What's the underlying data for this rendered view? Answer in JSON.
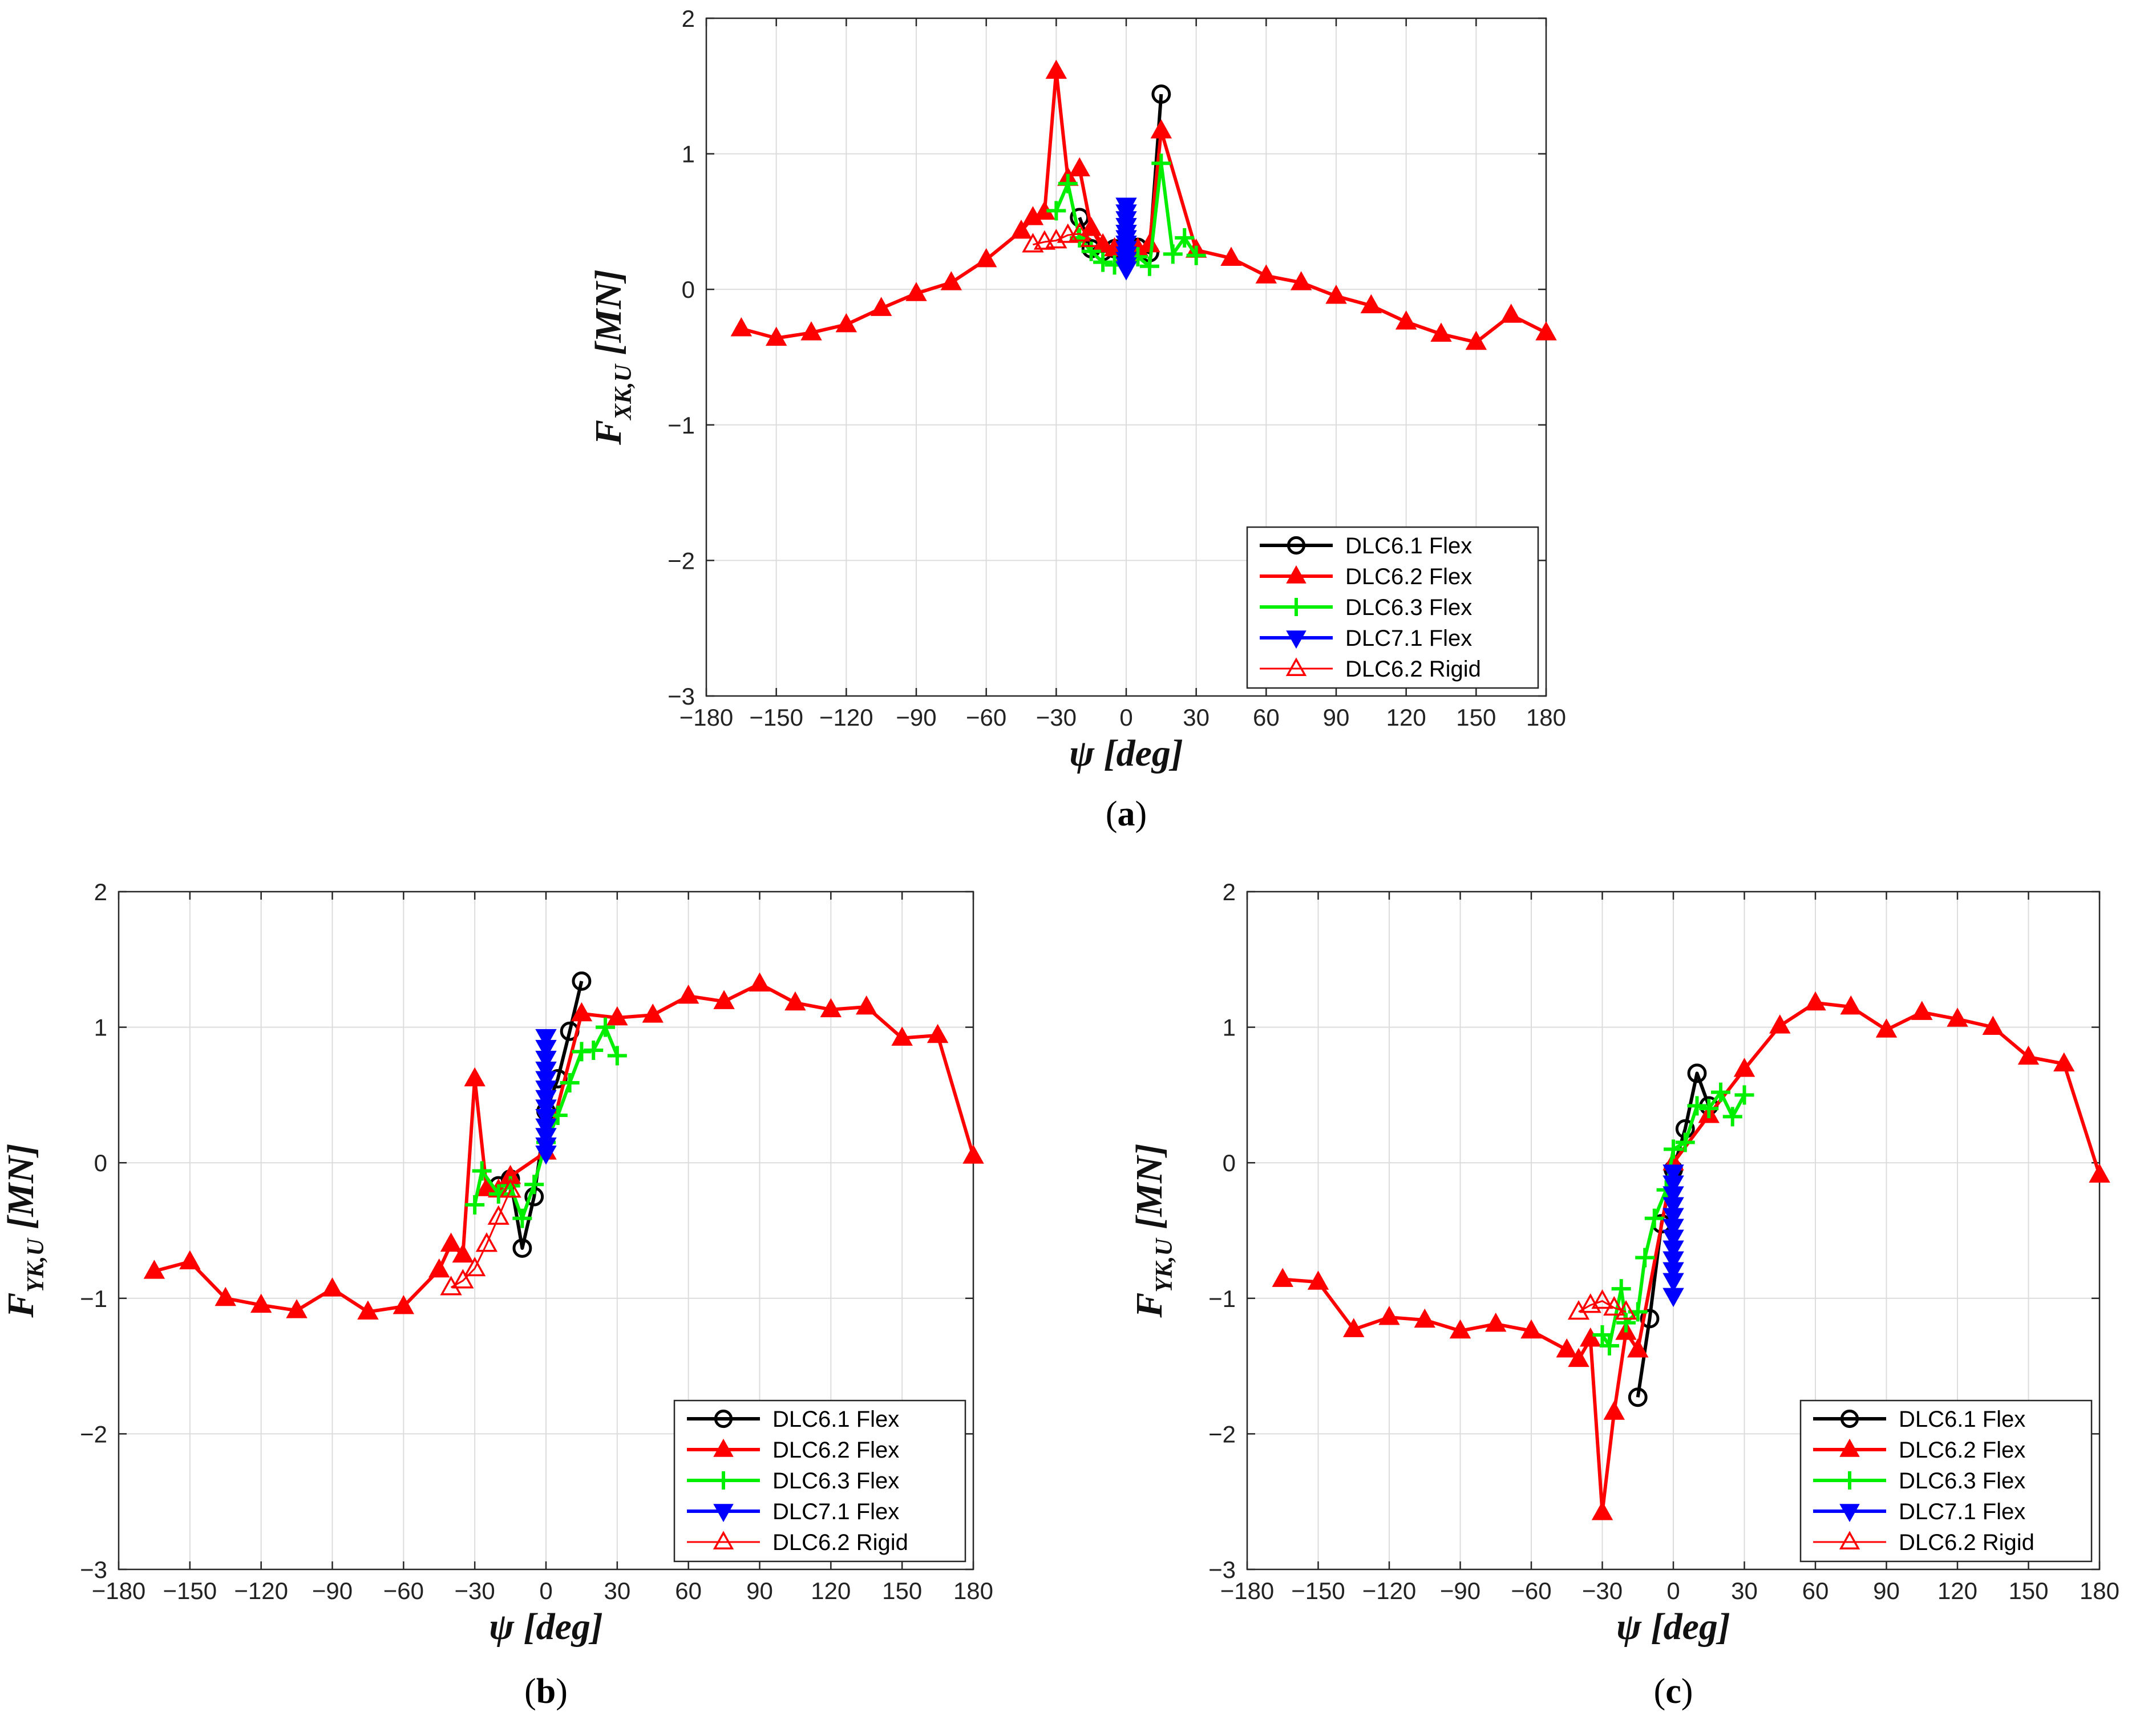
{
  "chart_data": [
    {
      "id": "a",
      "type": "line",
      "panel_label": "a",
      "ylabel": {
        "main": "F",
        "sub": "XK,U",
        "unit": "[MN]"
      },
      "xlabel": {
        "main": "ψ",
        "unit": "[deg]"
      },
      "xlim": [
        -180,
        180
      ],
      "ylim": [
        -3,
        2
      ],
      "xticks": [
        -180,
        -150,
        -120,
        -90,
        -60,
        -30,
        0,
        30,
        60,
        90,
        120,
        150,
        180
      ],
      "yticks": [
        -3,
        -2,
        -1,
        0,
        1,
        2
      ],
      "grid": true,
      "legend_position": "bottom-right",
      "series": [
        {
          "name": "DLC6.1 Flex",
          "color": "#000000",
          "marker": "circle",
          "values": [
            [
              -20,
              0.53
            ],
            [
              -15,
              0.3
            ],
            [
              -10,
              0.28
            ],
            [
              -5,
              0.3
            ],
            [
              0,
              0.28
            ],
            [
              5,
              0.31
            ],
            [
              10,
              0.27
            ],
            [
              15,
              1.44
            ]
          ]
        },
        {
          "name": "DLC6.2 Flex",
          "color": "#ff0000",
          "marker": "triangle-up-filled",
          "values": [
            [
              -165,
              -0.29
            ],
            [
              -150,
              -0.36
            ],
            [
              -135,
              -0.32
            ],
            [
              -120,
              -0.26
            ],
            [
              -105,
              -0.14
            ],
            [
              -90,
              -0.03
            ],
            [
              -75,
              0.05
            ],
            [
              -60,
              0.22
            ],
            [
              -45,
              0.43
            ],
            [
              -40,
              0.53
            ],
            [
              -35,
              0.57
            ],
            [
              -30,
              1.61
            ],
            [
              -25,
              0.82
            ],
            [
              -20,
              0.89
            ],
            [
              -15,
              0.45
            ],
            [
              -10,
              0.33
            ],
            [
              -5,
              0.3
            ],
            [
              0,
              0.26
            ],
            [
              5,
              0.3
            ],
            [
              10,
              0.33
            ],
            [
              15,
              1.17
            ],
            [
              30,
              0.29
            ],
            [
              45,
              0.23
            ],
            [
              60,
              0.1
            ],
            [
              75,
              0.05
            ],
            [
              90,
              -0.05
            ],
            [
              105,
              -0.12
            ],
            [
              120,
              -0.24
            ],
            [
              135,
              -0.33
            ],
            [
              150,
              -0.39
            ],
            [
              165,
              -0.19
            ],
            [
              180,
              -0.32
            ]
          ]
        },
        {
          "name": "DLC6.3 Flex",
          "color": "#00ee00",
          "marker": "plus",
          "values": [
            [
              -30,
              0.58
            ],
            [
              -25,
              0.78
            ],
            [
              -20,
              0.38
            ],
            [
              -15,
              0.28
            ],
            [
              -10,
              0.2
            ],
            [
              -5,
              0.18
            ],
            [
              0,
              0.2
            ],
            [
              5,
              0.24
            ],
            [
              10,
              0.17
            ],
            [
              15,
              0.93
            ],
            [
              20,
              0.26
            ],
            [
              25,
              0.38
            ],
            [
              30,
              0.25
            ]
          ]
        },
        {
          "name": "DLC7.1 Flex",
          "color": "#0000ff",
          "marker": "triangle-down-filled",
          "values": [
            [
              0,
              0.62
            ],
            [
              0,
              0.57
            ],
            [
              0,
              0.52
            ],
            [
              0,
              0.47
            ],
            [
              0,
              0.42
            ],
            [
              0,
              0.38
            ],
            [
              0,
              0.34
            ],
            [
              0,
              0.3
            ],
            [
              0,
              0.26
            ],
            [
              0,
              0.22
            ],
            [
              0,
              0.18
            ],
            [
              0,
              0.15
            ]
          ]
        },
        {
          "name": "DLC6.2 Rigid",
          "color": "#ff0000",
          "marker": "triangle-up-open",
          "values": [
            [
              -40,
              0.33
            ],
            [
              -35,
              0.35
            ],
            [
              -30,
              0.36
            ],
            [
              -25,
              0.4
            ],
            [
              -20,
              0.41
            ],
            [
              -15,
              0.37
            ]
          ]
        }
      ]
    },
    {
      "id": "b",
      "type": "line",
      "panel_label": "b",
      "ylabel": {
        "main": "F",
        "sub": "YK,U",
        "unit": "[MN]"
      },
      "xlabel": {
        "main": "ψ",
        "unit": "[deg]"
      },
      "xlim": [
        -180,
        180
      ],
      "ylim": [
        -3,
        2
      ],
      "xticks": [
        -180,
        -150,
        -120,
        -90,
        -60,
        -30,
        0,
        30,
        60,
        90,
        120,
        150,
        180
      ],
      "yticks": [
        -3,
        -2,
        -1,
        0,
        1,
        2
      ],
      "grid": true,
      "legend_position": "bottom-right",
      "series": [
        {
          "name": "DLC6.1 Flex",
          "color": "#000000",
          "marker": "circle",
          "values": [
            [
              -20,
              -0.17
            ],
            [
              -15,
              -0.12
            ],
            [
              -10,
              -0.63
            ],
            [
              -5,
              -0.25
            ],
            [
              0,
              0.38
            ],
            [
              5,
              0.62
            ],
            [
              10,
              0.97
            ],
            [
              15,
              1.34
            ]
          ]
        },
        {
          "name": "DLC6.2 Flex",
          "color": "#ff0000",
          "marker": "triangle-up-filled",
          "values": [
            [
              -165,
              -0.8
            ],
            [
              -150,
              -0.73
            ],
            [
              -135,
              -1.0
            ],
            [
              -120,
              -1.05
            ],
            [
              -105,
              -1.09
            ],
            [
              -90,
              -0.93
            ],
            [
              -75,
              -1.1
            ],
            [
              -60,
              -1.06
            ],
            [
              -45,
              -0.79
            ],
            [
              -40,
              -0.6
            ],
            [
              -35,
              -0.68
            ],
            [
              -30,
              0.62
            ],
            [
              -25,
              -0.19
            ],
            [
              -20,
              -0.2
            ],
            [
              -15,
              -0.1
            ],
            [
              0,
              0.08
            ],
            [
              15,
              1.1
            ],
            [
              30,
              1.07
            ],
            [
              45,
              1.09
            ],
            [
              60,
              1.23
            ],
            [
              75,
              1.19
            ],
            [
              90,
              1.32
            ],
            [
              105,
              1.18
            ],
            [
              120,
              1.13
            ],
            [
              135,
              1.15
            ],
            [
              150,
              0.92
            ],
            [
              165,
              0.94
            ],
            [
              180,
              0.05
            ]
          ]
        },
        {
          "name": "DLC6.3 Flex",
          "color": "#00ee00",
          "marker": "plus",
          "values": [
            [
              -30,
              -0.31
            ],
            [
              -27,
              -0.06
            ],
            [
              -20,
              -0.23
            ],
            [
              -15,
              -0.17
            ],
            [
              -10,
              -0.41
            ],
            [
              -5,
              -0.16
            ],
            [
              0,
              0.15
            ],
            [
              5,
              0.35
            ],
            [
              10,
              0.59
            ],
            [
              15,
              0.82
            ],
            [
              20,
              0.83
            ],
            [
              25,
              1.0
            ],
            [
              30,
              0.79
            ]
          ]
        },
        {
          "name": "DLC7.1 Flex",
          "color": "#0000ff",
          "marker": "triangle-down-filled",
          "values": [
            [
              0,
              0.93
            ],
            [
              0,
              0.85
            ],
            [
              0,
              0.77
            ],
            [
              0,
              0.69
            ],
            [
              0,
              0.62
            ],
            [
              0,
              0.55
            ],
            [
              0,
              0.48
            ],
            [
              0,
              0.41
            ],
            [
              0,
              0.34
            ],
            [
              0,
              0.27
            ],
            [
              0,
              0.2
            ],
            [
              0,
              0.13
            ],
            [
              0,
              0.07
            ]
          ]
        },
        {
          "name": "DLC6.2 Rigid",
          "color": "#ff0000",
          "marker": "triangle-up-open",
          "values": [
            [
              -40,
              -0.92
            ],
            [
              -35,
              -0.87
            ],
            [
              -30,
              -0.78
            ],
            [
              -25,
              -0.6
            ],
            [
              -20,
              -0.4
            ],
            [
              -15,
              -0.2
            ]
          ]
        }
      ]
    },
    {
      "id": "c",
      "type": "line",
      "panel_label": "c",
      "ylabel": {
        "main": "F",
        "sub": "YK,U",
        "unit": "[MN]"
      },
      "xlabel": {
        "main": "ψ",
        "unit": "[deg]"
      },
      "xlim": [
        -180,
        180
      ],
      "ylim": [
        -3,
        2
      ],
      "xticks": [
        -180,
        -150,
        -120,
        -90,
        -60,
        -30,
        0,
        30,
        60,
        90,
        120,
        150,
        180
      ],
      "yticks": [
        -3,
        -2,
        -1,
        0,
        1,
        2
      ],
      "grid": true,
      "legend_position": "bottom-right",
      "series": [
        {
          "name": "DLC6.1 Flex",
          "color": "#000000",
          "marker": "circle",
          "values": [
            [
              -15,
              -1.73
            ],
            [
              -10,
              -1.15
            ],
            [
              -5,
              -0.45
            ],
            [
              0,
              -0.05
            ],
            [
              5,
              0.25
            ],
            [
              10,
              0.66
            ],
            [
              15,
              0.42
            ]
          ]
        },
        {
          "name": "DLC6.2 Flex",
          "color": "#ff0000",
          "marker": "triangle-up-filled",
          "values": [
            [
              -165,
              -0.86
            ],
            [
              -150,
              -0.88
            ],
            [
              -135,
              -1.23
            ],
            [
              -120,
              -1.14
            ],
            [
              -105,
              -1.16
            ],
            [
              -90,
              -1.24
            ],
            [
              -75,
              -1.19
            ],
            [
              -60,
              -1.24
            ],
            [
              -45,
              -1.38
            ],
            [
              -40,
              -1.45
            ],
            [
              -35,
              -1.3
            ],
            [
              -30,
              -2.58
            ],
            [
              -25,
              -1.84
            ],
            [
              -20,
              -1.25
            ],
            [
              -15,
              -1.38
            ],
            [
              0,
              0.0
            ],
            [
              15,
              0.35
            ],
            [
              30,
              0.69
            ],
            [
              45,
              1.01
            ],
            [
              60,
              1.18
            ],
            [
              75,
              1.15
            ],
            [
              90,
              0.98
            ],
            [
              105,
              1.11
            ],
            [
              120,
              1.06
            ],
            [
              135,
              1.0
            ],
            [
              150,
              0.78
            ],
            [
              165,
              0.73
            ],
            [
              180,
              -0.09
            ]
          ]
        },
        {
          "name": "DLC6.3 Flex",
          "color": "#00ee00",
          "marker": "plus",
          "values": [
            [
              -30,
              -1.27
            ],
            [
              -27,
              -1.35
            ],
            [
              -22,
              -0.93
            ],
            [
              -20,
              -1.18
            ],
            [
              -15,
              -1.1
            ],
            [
              -12,
              -0.7
            ],
            [
              -8,
              -0.41
            ],
            [
              -3,
              -0.2
            ],
            [
              0,
              0.1
            ],
            [
              5,
              0.15
            ],
            [
              10,
              0.42
            ],
            [
              15,
              0.4
            ],
            [
              20,
              0.52
            ],
            [
              25,
              0.34
            ],
            [
              30,
              0.5
            ]
          ]
        },
        {
          "name": "DLC7.1 Flex",
          "color": "#0000ff",
          "marker": "triangle-down-filled",
          "values": [
            [
              0,
              -0.07
            ],
            [
              0,
              -0.15
            ],
            [
              0,
              -0.23
            ],
            [
              0,
              -0.31
            ],
            [
              0,
              -0.39
            ],
            [
              0,
              -0.47
            ],
            [
              0,
              -0.55
            ],
            [
              0,
              -0.63
            ],
            [
              0,
              -0.71
            ],
            [
              0,
              -0.79
            ],
            [
              0,
              -0.87
            ],
            [
              0,
              -0.98
            ]
          ]
        },
        {
          "name": "DLC6.2 Rigid",
          "color": "#ff0000",
          "marker": "triangle-up-open",
          "values": [
            [
              -40,
              -1.1
            ],
            [
              -35,
              -1.05
            ],
            [
              -30,
              -1.02
            ],
            [
              -25,
              -1.07
            ],
            [
              -20,
              -1.1
            ]
          ]
        }
      ]
    }
  ]
}
